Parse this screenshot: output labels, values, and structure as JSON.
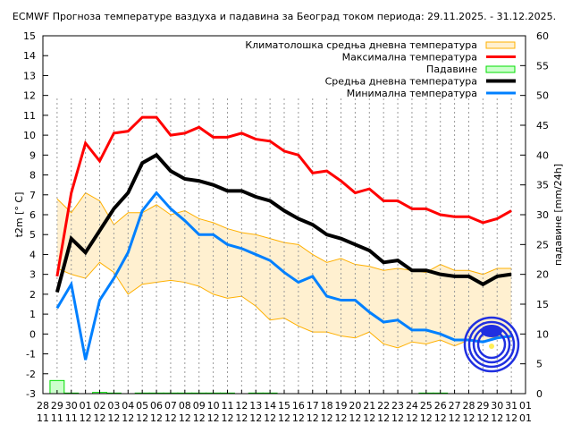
{
  "chart_data": {
    "type": "line",
    "title": "ECMWF Прогноза температуре ваздуха и падавина за Београд током периода: 29.11.2025. - 31.12.2025.",
    "ylabel": "t2m [° C]",
    "y2label": "падавине [mm/24h]",
    "xlabel": "",
    "ylim": [
      -3,
      15
    ],
    "y2lim": [
      0,
      60
    ],
    "yticks": [
      "-3",
      "-2",
      "-1",
      "0",
      "1",
      "2",
      "3",
      "4",
      "5",
      "6",
      "7",
      "8",
      "9",
      "10",
      "11",
      "12",
      "13",
      "14",
      "15"
    ],
    "y2ticks": [
      "0",
      "5",
      "10",
      "15",
      "20",
      "25",
      "30",
      "35",
      "40",
      "45",
      "50",
      "55",
      "60"
    ],
    "xtick_days": [
      "28",
      "29",
      "30",
      "01",
      "02",
      "03",
      "04",
      "05",
      "06",
      "07",
      "08",
      "09",
      "10",
      "11",
      "12",
      "13",
      "14",
      "15",
      "16",
      "17",
      "18",
      "19",
      "20",
      "21",
      "22",
      "23",
      "24",
      "25",
      "26",
      "27",
      "28",
      "29",
      "30",
      "31",
      "01"
    ],
    "xtick_months": [
      "11",
      "11",
      "11",
      "12",
      "12",
      "12",
      "12",
      "12",
      "12",
      "12",
      "12",
      "12",
      "12",
      "12",
      "12",
      "12",
      "12",
      "12",
      "12",
      "12",
      "12",
      "12",
      "12",
      "12",
      "12",
      "12",
      "12",
      "12",
      "12",
      "12",
      "12",
      "12",
      "12",
      "12",
      "01"
    ],
    "grid": "vertical dotted",
    "legend_placement": "top-right",
    "legend": [
      {
        "key": "clim",
        "label": "Климатолошка средња дневна температура"
      },
      {
        "key": "max",
        "label": "Максимална температура"
      },
      {
        "key": "precip",
        "label": "Падавине"
      },
      {
        "key": "mean",
        "label": "Средња дневна температура"
      },
      {
        "key": "min",
        "label": "Минимална температура"
      }
    ],
    "colors": {
      "max": "#ff0000",
      "mean": "#000000",
      "min": "#0080ff",
      "clim_fill": "#fff0d0",
      "clim_line": "#ffb000",
      "precip_fill": "#ccffcc",
      "precip_line": "#00dd00"
    },
    "x": [
      "29.11",
      "30.11",
      "01.12",
      "02.12",
      "03.12",
      "04.12",
      "05.12",
      "06.12",
      "07.12",
      "08.12",
      "09.12",
      "10.12",
      "11.12",
      "12.12",
      "13.12",
      "14.12",
      "15.12",
      "16.12",
      "17.12",
      "18.12",
      "19.12",
      "20.12",
      "21.12",
      "22.12",
      "23.12",
      "24.12",
      "25.12",
      "26.12",
      "27.12",
      "28.12",
      "29.12",
      "30.12",
      "31.12"
    ],
    "series": {
      "max": [
        2.9,
        7.1,
        9.6,
        8.7,
        10.1,
        10.2,
        10.9,
        10.9,
        10.0,
        10.1,
        10.4,
        9.9,
        9.9,
        10.1,
        9.8,
        9.7,
        9.2,
        9.0,
        8.1,
        8.2,
        7.7,
        7.1,
        7.3,
        6.7,
        6.7,
        6.3,
        6.3,
        6.0,
        5.9,
        5.9,
        5.6,
        5.8,
        6.2
      ],
      "mean": [
        2.1,
        4.8,
        4.1,
        5.2,
        6.3,
        7.1,
        8.6,
        9.0,
        8.2,
        7.8,
        7.7,
        7.5,
        7.2,
        7.2,
        6.9,
        6.7,
        6.2,
        5.8,
        5.5,
        5.0,
        4.8,
        4.5,
        4.2,
        3.6,
        3.7,
        3.2,
        3.2,
        3.0,
        2.9,
        2.9,
        2.5,
        2.9,
        3.0
      ],
      "min": [
        1.3,
        2.5,
        -1.3,
        1.7,
        2.8,
        4.1,
        6.2,
        7.1,
        6.3,
        5.7,
        5.0,
        5.0,
        4.5,
        4.3,
        4.0,
        3.7,
        3.1,
        2.6,
        2.9,
        1.9,
        1.7,
        1.7,
        1.1,
        0.6,
        0.7,
        0.2,
        0.2,
        0.0,
        -0.3,
        -0.3,
        -0.4,
        -0.2,
        -0.1
      ],
      "clim_upper": [
        6.8,
        6.1,
        7.1,
        6.7,
        5.5,
        6.1,
        6.1,
        6.5,
        6.0,
        6.2,
        5.8,
        5.6,
        5.3,
        5.1,
        5.0,
        4.8,
        4.6,
        4.5,
        4.0,
        3.6,
        3.8,
        3.5,
        3.4,
        3.2,
        3.3,
        3.2,
        3.1,
        3.5,
        3.2,
        3.2,
        3.0,
        3.3,
        3.3
      ],
      "clim_lower": [
        3.3,
        3.0,
        2.8,
        3.6,
        3.1,
        2.0,
        2.5,
        2.6,
        2.7,
        2.6,
        2.4,
        2.0,
        1.8,
        1.9,
        1.4,
        0.7,
        0.8,
        0.4,
        0.1,
        0.1,
        -0.1,
        -0.2,
        0.1,
        -0.5,
        -0.7,
        -0.4,
        -0.5,
        -0.3,
        -0.6,
        -0.3,
        -0.4,
        -0.1,
        -0.2
      ],
      "precip": [
        2.2,
        0.1,
        0.0,
        0.2,
        0.1,
        0.0,
        0.1,
        0.1,
        0.1,
        0.1,
        0.1,
        0.1,
        0.1,
        0.0,
        0.1,
        0.1,
        0.0,
        0.0,
        0.0,
        0.0,
        0.0,
        0.0,
        0.0,
        0.0,
        0.0,
        0.0,
        0.1,
        0.1,
        0.0,
        0.0,
        0.0,
        0.0,
        0.0
      ]
    }
  },
  "logo": {
    "name": "RHMZ Srbije logo",
    "text": "РХМЗ Србије"
  }
}
